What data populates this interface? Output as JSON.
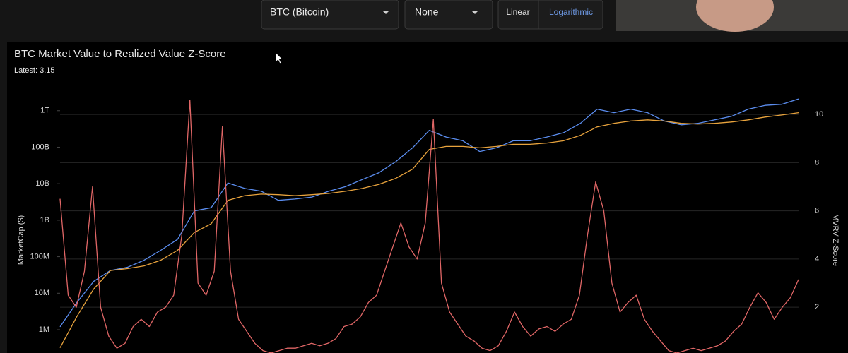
{
  "controls": {
    "asset": "BTC (Bitcoin)",
    "overlay": "None",
    "scale_options": [
      "Linear",
      "Logarithmic"
    ]
  },
  "chart_data": {
    "type": "line",
    "title": "BTC Market Value to Realized Value Z-Score",
    "subtitle": "Latest: 3.15",
    "y_label": "MarketCap ($)",
    "y2_label": "MVRV Z-Score",
    "yscale": "log",
    "ylim": [
      230000,
      3600000000000
    ],
    "yticks": [
      {
        "value": 1000000,
        "label": "1M"
      },
      {
        "value": 10000000,
        "label": "10M"
      },
      {
        "value": 100000000,
        "label": "100M"
      },
      {
        "value": 1000000000,
        "label": "1B"
      },
      {
        "value": 10000000000,
        "label": "10B"
      },
      {
        "value": 100000000000,
        "label": "100B"
      },
      {
        "value": 1000000000000,
        "label": "1T"
      }
    ],
    "y2lim": [
      0.1,
      11
    ],
    "y2ticks": [
      2,
      4,
      6,
      8,
      10
    ],
    "grid": true,
    "series": [
      {
        "color": "#5b8def",
        "values": [
          1200000,
          5600000,
          21000000,
          42000000,
          51000000,
          80000000,
          150000000,
          300000000,
          1800000000,
          2200000000,
          10500000000,
          7400000000,
          6200000000,
          3500000000,
          3800000000,
          4300000000,
          6200000000,
          8300000000,
          13000000000,
          20000000000,
          40000000000,
          96000000000,
          290000000000,
          190000000000,
          150000000000,
          76000000000,
          96000000000,
          150000000000,
          150000000000,
          190000000000,
          250000000000,
          450000000000,
          1100000000000,
          880000000000,
          1100000000000,
          880000000000,
          520000000000,
          410000000000,
          450000000000,
          560000000000,
          700000000000,
          1100000000000,
          1400000000000,
          1500000000000,
          2100000000000
        ]
      },
      {
        "color": "#e8a33d",
        "values": [
          320000,
          2300000,
          13000000,
          42000000,
          47000000,
          56000000,
          80000000,
          150000000,
          460000000,
          800000000,
          3500000000,
          4700000000,
          5200000000,
          5000000000,
          4700000000,
          5000000000,
          5400000000,
          6200000000,
          7400000000,
          9600000000,
          14000000000,
          25000000000,
          87000000000,
          105000000000,
          105000000000,
          96000000000,
          105000000000,
          120000000000,
          120000000000,
          130000000000,
          150000000000,
          210000000000,
          360000000000,
          450000000000,
          520000000000,
          560000000000,
          520000000000,
          450000000000,
          430000000000,
          450000000000,
          490000000000,
          560000000000,
          670000000000,
          760000000000,
          880000000000
        ]
      },
      {
        "color": "#e06666",
        "axis": "y2",
        "values": [
          6.5,
          2.5,
          2.0,
          3.5,
          7.0,
          2.0,
          0.8,
          0.3,
          0.5,
          1.2,
          1.5,
          1.2,
          1.8,
          2.0,
          2.5,
          5.0,
          10.6,
          3.0,
          2.5,
          3.5,
          9.5,
          3.5,
          1.5,
          1.0,
          0.5,
          0.2,
          0.1,
          0.2,
          0.3,
          0.3,
          0.4,
          0.5,
          0.4,
          0.5,
          0.7,
          1.2,
          1.3,
          1.6,
          2.2,
          2.5,
          3.5,
          4.5,
          5.5,
          4.5,
          4.0,
          5.5,
          9.8,
          3.0,
          1.8,
          1.3,
          0.8,
          0.6,
          0.3,
          0.2,
          0.4,
          1.0,
          1.8,
          1.2,
          0.8,
          1.1,
          1.2,
          1.0,
          1.3,
          1.5,
          2.5,
          5.0,
          7.2,
          6.0,
          3.0,
          1.8,
          2.2,
          2.5,
          1.5,
          1.0,
          0.6,
          0.2,
          0.1,
          0.2,
          0.3,
          0.2,
          0.3,
          0.4,
          0.6,
          1.0,
          1.3,
          2.0,
          2.6,
          2.2,
          1.5,
          2.0,
          2.4,
          3.15
        ]
      }
    ]
  }
}
